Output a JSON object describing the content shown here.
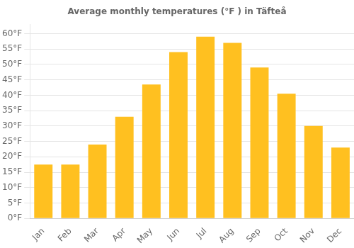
{
  "chart_data": {
    "type": "bar",
    "title": "Average monthly temperatures (°F ) in Täfteå",
    "categories": [
      "Jan",
      "Feb",
      "Mar",
      "Apr",
      "May",
      "Jun",
      "Jul",
      "Aug",
      "Sep",
      "Oct",
      "Nov",
      "Dec"
    ],
    "values": [
      17.5,
      17.5,
      24.0,
      33.0,
      43.5,
      54.0,
      59.0,
      57.0,
      49.0,
      40.5,
      30.0,
      23.0
    ],
    "color": "#FFC020",
    "ylim": [
      0,
      63
    ],
    "yticks": [
      {
        "value": 0,
        "label": "0°F"
      },
      {
        "value": 5,
        "label": "5°F"
      },
      {
        "value": 10,
        "label": "10°F"
      },
      {
        "value": 15,
        "label": "15°F"
      },
      {
        "value": 20,
        "label": "20°F"
      },
      {
        "value": 25,
        "label": "25°F"
      },
      {
        "value": 30,
        "label": "30°F"
      },
      {
        "value": 35,
        "label": "35°F"
      },
      {
        "value": 40,
        "label": "40°F"
      },
      {
        "value": 45,
        "label": "45°F"
      },
      {
        "value": 50,
        "label": "50°F"
      },
      {
        "value": 55,
        "label": "55°F"
      },
      {
        "value": 60,
        "label": "60°F"
      }
    ],
    "grid": true
  }
}
